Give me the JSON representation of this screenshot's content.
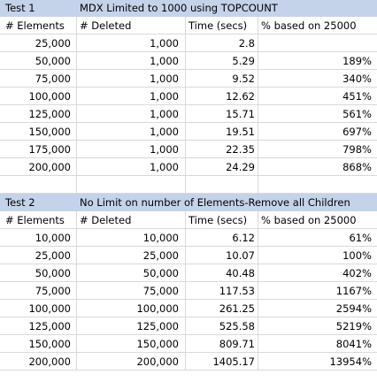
{
  "test1": {
    "label": "Test 1",
    "title": "MDX Limited to 1000 using TOPCOUNT",
    "headers": [
      "# Elements",
      "# Deleted",
      "Time (secs)",
      "% based on 25000"
    ],
    "rows": [
      [
        "25,000",
        "1,000",
        "2.8",
        ""
      ],
      [
        "50,000",
        "1,000",
        "5.29",
        "189%"
      ],
      [
        "75,000",
        "1,000",
        "9.52",
        "340%"
      ],
      [
        "100,000",
        "1,000",
        "12.62",
        "451%"
      ],
      [
        "125,000",
        "1,000",
        "15.71",
        "561%"
      ],
      [
        "150,000",
        "1,000",
        "19.51",
        "697%"
      ],
      [
        "175,000",
        "1,000",
        "22.35",
        "798%"
      ],
      [
        "200,000",
        "1,000",
        "24.29",
        "868%"
      ]
    ]
  },
  "test2": {
    "label": "Test 2",
    "title": "No Limit on number of Elements-Remove all Children",
    "headers": [
      "# Elements",
      "# Deleted",
      "Time (secs)",
      "% based on 25000"
    ],
    "rows": [
      [
        "10,000",
        "10,000",
        "6.12",
        "61%"
      ],
      [
        "25,000",
        "25,000",
        "10.07",
        "100%"
      ],
      [
        "50,000",
        "50,000",
        "40.48",
        "402%"
      ],
      [
        "75,000",
        "75,000",
        "117.53",
        "1167%"
      ],
      [
        "100,000",
        "100,000",
        "261.25",
        "2594%"
      ],
      [
        "125,000",
        "125,000",
        "525.58",
        "5219%"
      ],
      [
        "150,000",
        "150,000",
        "809.71",
        "8041%"
      ],
      [
        "200,000",
        "200,000",
        "1405.17",
        "13954%"
      ]
    ]
  }
}
